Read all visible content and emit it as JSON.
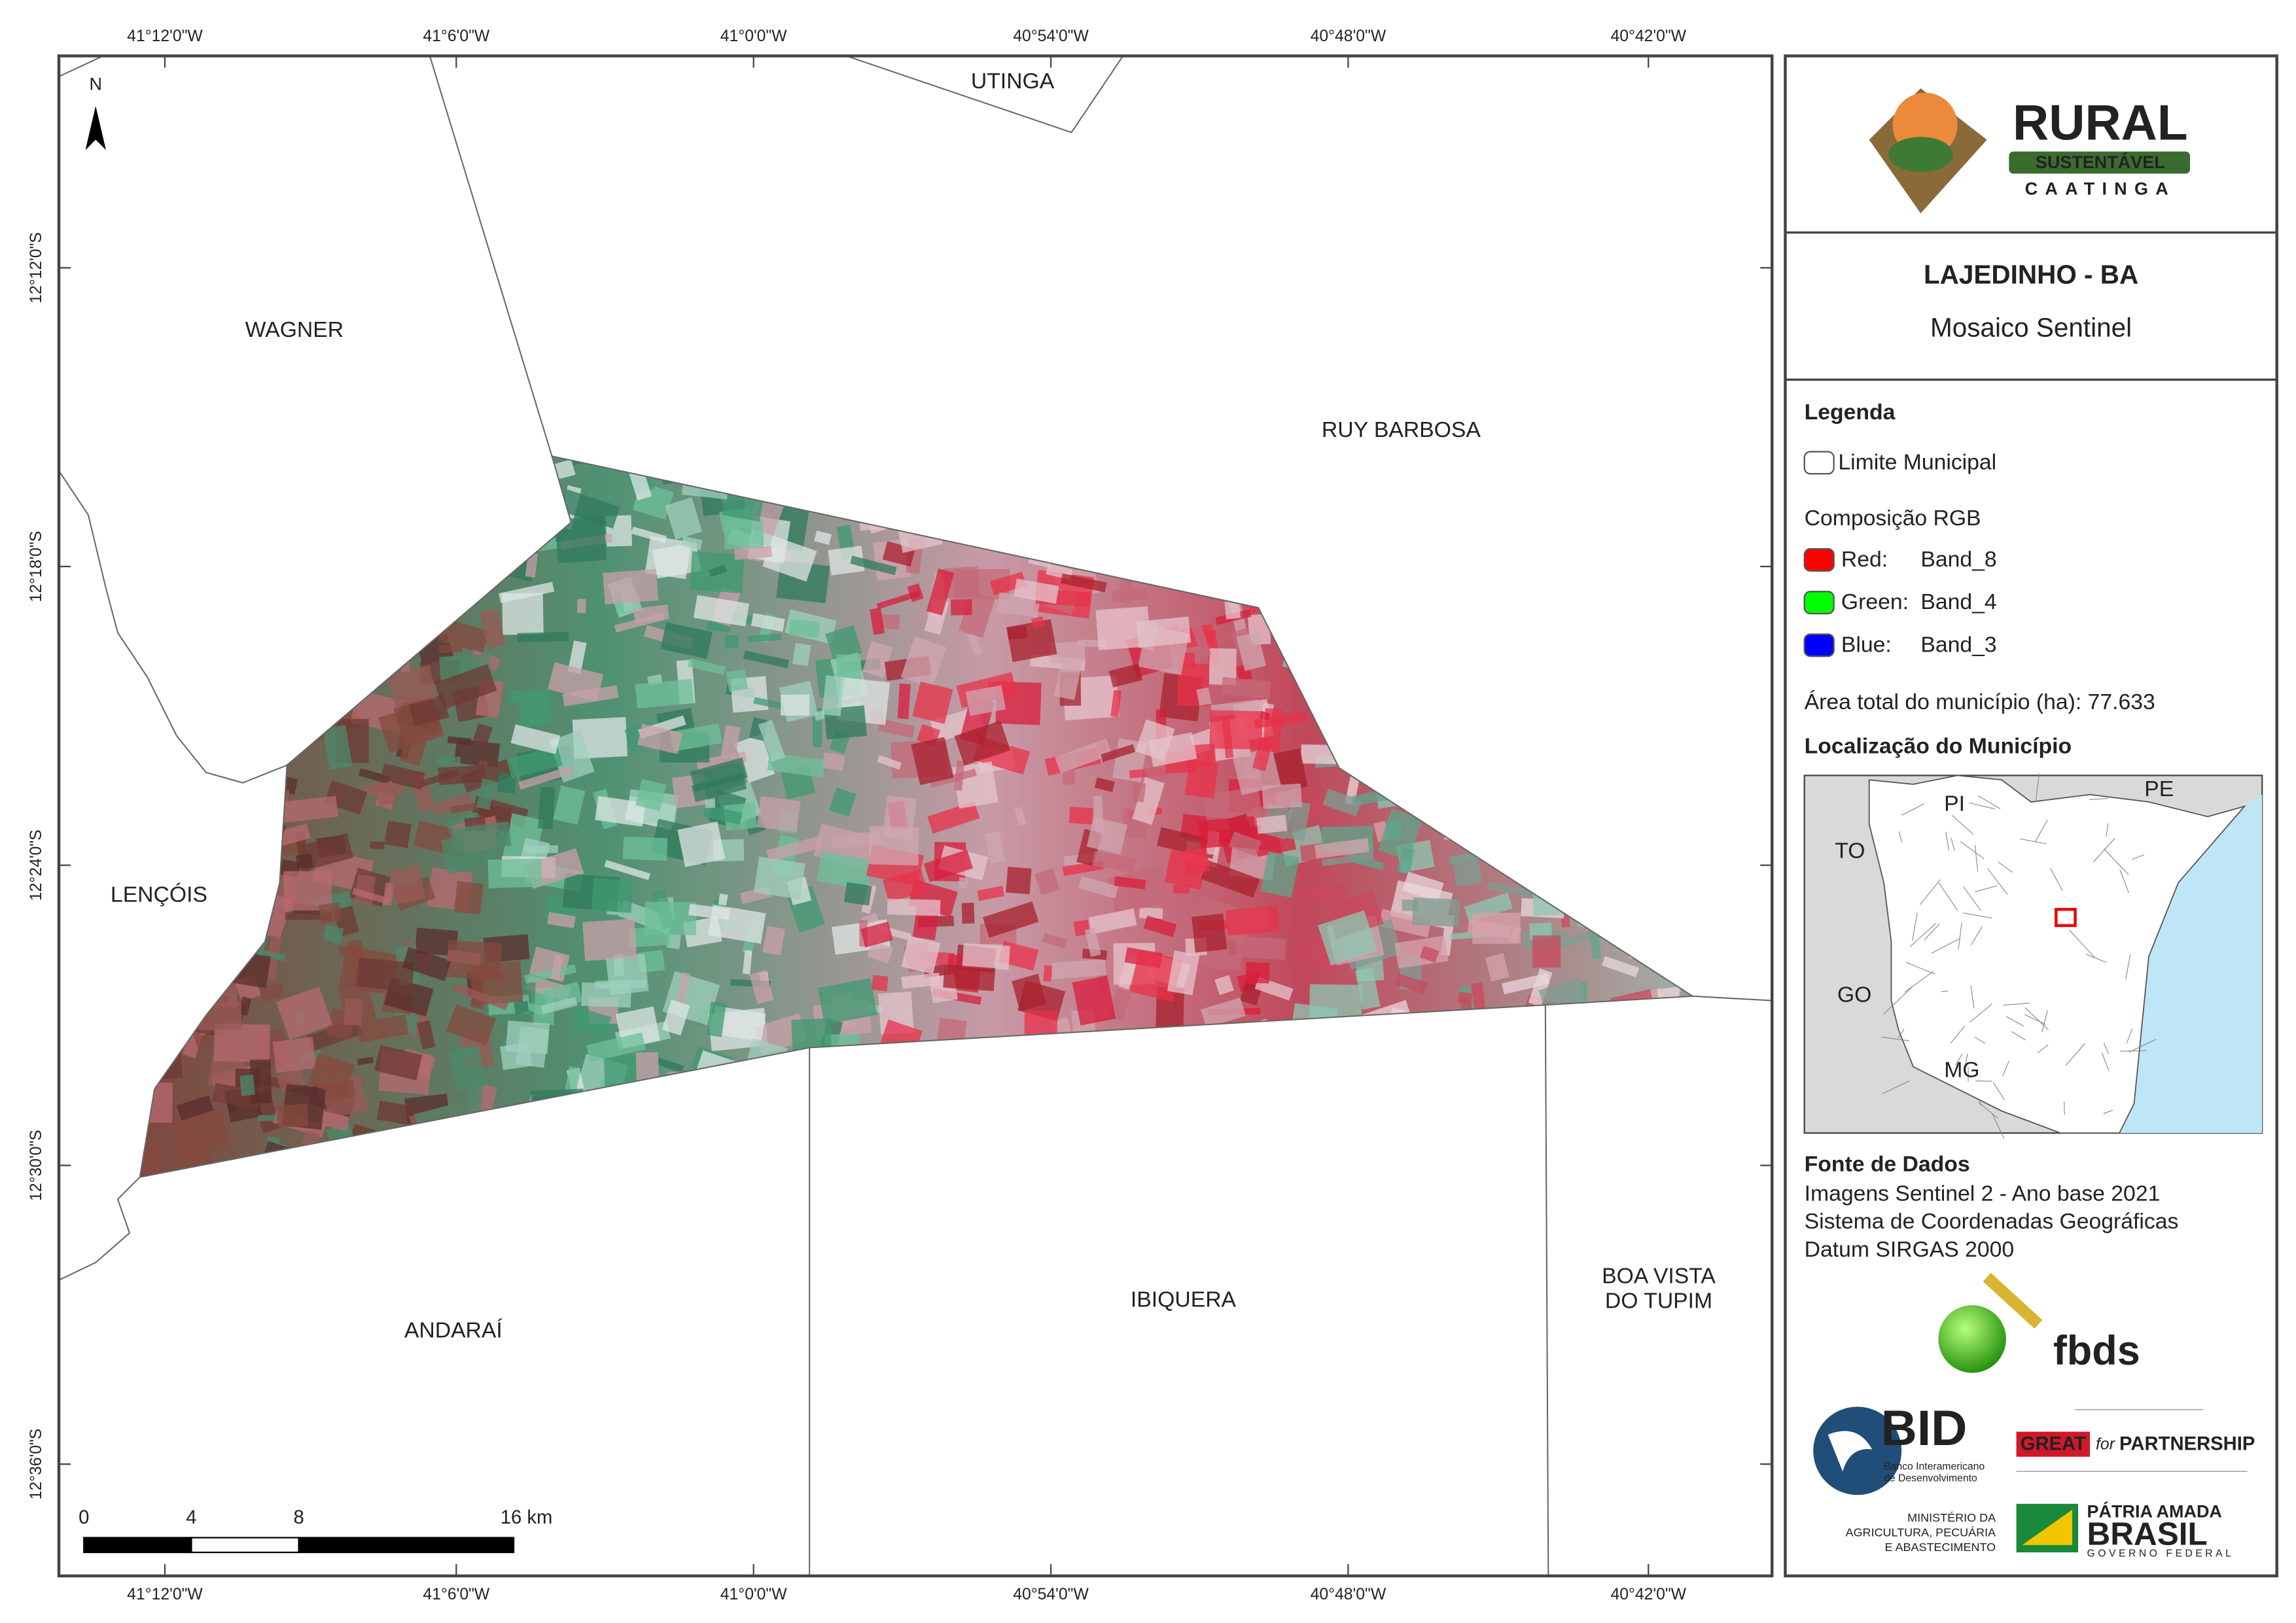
{
  "map": {
    "graticule": {
      "longitudes": [
        "41°12'0\"W",
        "41°6'0\"W",
        "41°0'0\"W",
        "40°54'0\"W",
        "40°48'0\"W",
        "40°42'0\"W"
      ],
      "latitudes": [
        "12°12'0\"S",
        "12°18'0\"S",
        "12°24'0\"S",
        "12°30'0\"S",
        "12°36'0\"S"
      ]
    },
    "north_arrow": "N",
    "municipalities": [
      "UTINGA",
      "WAGNER",
      "RUY BARBOSA",
      "LENÇÓIS",
      "ANDARAÍ",
      "IBIQUERA",
      "BOA VISTA",
      "DO TUPIM"
    ],
    "scale_bar": {
      "labels": [
        "0",
        "4",
        "8",
        "16 km"
      ]
    }
  },
  "panel": {
    "logo": {
      "name": "RURAL",
      "band": "SUSTENTÁVEL",
      "region": "CAATINGA"
    },
    "title": "LAJEDINHO - BA",
    "subtitle": "Mosaico Sentinel",
    "legend": {
      "heading": "Legenda",
      "boundary": "Limite Municipal",
      "composition": "Composição RGB",
      "bands": [
        {
          "label": "Red:",
          "band": "Band_8",
          "color": "#ff0000"
        },
        {
          "label": "Green:",
          "band": "Band_4",
          "color": "#00ff00"
        },
        {
          "label": "Blue:",
          "band": "Band_3",
          "color": "#0000ff"
        }
      ],
      "area": "Área total do município (ha): 77.633"
    },
    "location": {
      "heading": "Localização do Município",
      "states": [
        "PI",
        "PE",
        "TO",
        "GO",
        "MG"
      ]
    },
    "sources": {
      "heading": "Fonte de Dados",
      "lines": [
        "Imagens Sentinel 2 - Ano base 2021",
        "Sistema de Coordenadas Geográficas",
        "Datum SIRGAS 2000"
      ]
    },
    "partners": {
      "fbds": "fbds",
      "bid": "BID",
      "bid_lines": [
        "Banco Interamericano",
        "de Desenvolvimento"
      ],
      "great": [
        "GREAT",
        "for",
        "PARTNERSHIP"
      ],
      "ministry": [
        "MINISTÉRIO DA",
        "AGRICULTURA, PECUÁRIA",
        "E ABASTECIMENTO"
      ],
      "brasil": [
        "PÁTRIA AMADA",
        "BRASIL",
        "GOVERNO FEDERAL"
      ]
    }
  }
}
